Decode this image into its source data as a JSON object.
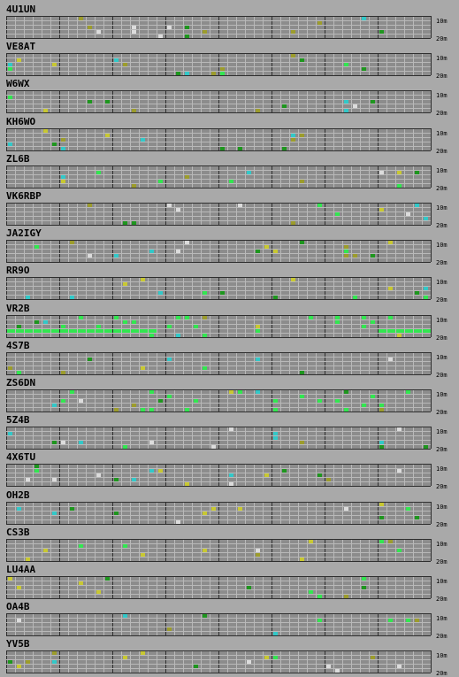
{
  "stations": [
    "4U1UN",
    "VE8AT",
    "W6WX",
    "KH6WO",
    "ZL6B",
    "VK6RBP",
    "JA2IGY",
    "RR9O",
    "VR2B",
    "4S7B",
    "ZS6DN",
    "5Z4B",
    "4X6TU",
    "OH2B",
    "CS3B",
    "LU4AA",
    "OA4B",
    "YV5B"
  ],
  "bands": {
    "top": "10m",
    "bottom": "20m"
  },
  "grid": {
    "columns": 48,
    "rows": 5,
    "columns_per_group": 6
  },
  "colors": {
    "background": "#a9a9a9",
    "cell_empty": "#8c8c8c",
    "cell_line": "#b9b9b9",
    "group_divider": "#2f2f2f",
    "signal_palette": [
      "#c8c832",
      "#9c9c2c",
      "#32c8c8",
      "#32e650",
      "#1e961e",
      "#dcdcdc"
    ]
  }
}
